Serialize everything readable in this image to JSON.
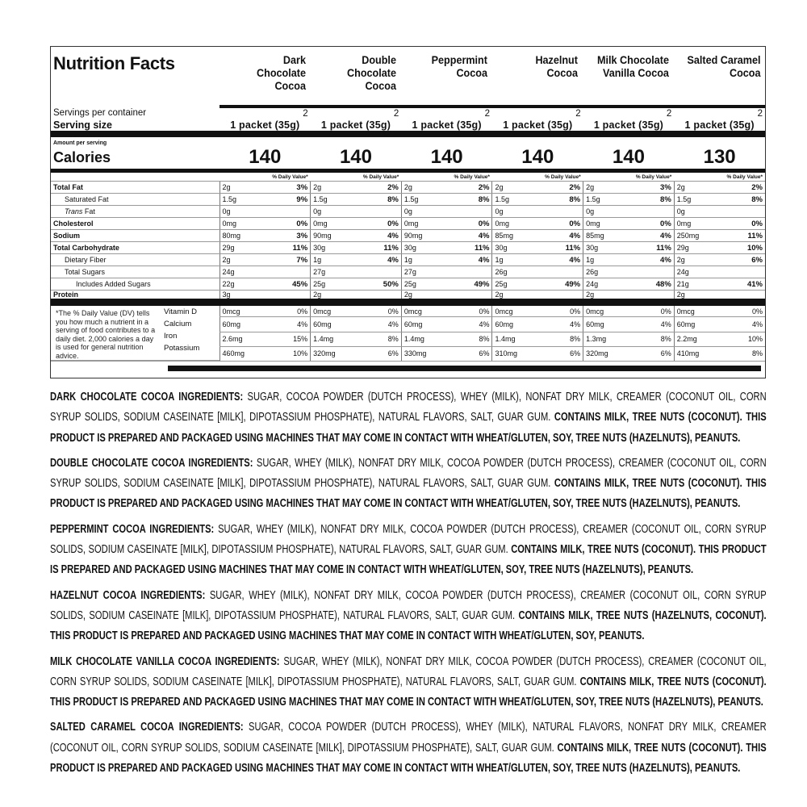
{
  "title": "Nutrition Facts",
  "labels": {
    "servings_per_container": "Servings per container",
    "serving_size": "Serving size",
    "amount_per_serving": "Amount per serving",
    "calories": "Calories",
    "dv_header": "% Daily Value*"
  },
  "products": [
    {
      "name": "Dark Chocolate Cocoa",
      "servings": "2",
      "serving_size": "1 packet (35g)",
      "calories": "140"
    },
    {
      "name": "Double Chocolate Cocoa",
      "servings": "2",
      "serving_size": "1 packet (35g)",
      "calories": "140"
    },
    {
      "name": "Peppermint Cocoa",
      "servings": "2",
      "serving_size": "1 packet (35g)",
      "calories": "140"
    },
    {
      "name": "Hazelnut Cocoa",
      "servings": "2",
      "serving_size": "1 packet (35g)",
      "calories": "140"
    },
    {
      "name": "Milk Chocolate Vanilla Cocoa",
      "servings": "2",
      "serving_size": "1 packet (35g)",
      "calories": "140"
    },
    {
      "name": "Salted Caramel Cocoa",
      "servings": "2",
      "serving_size": "1 packet (35g)",
      "calories": "130"
    }
  ],
  "nutrients": [
    {
      "label": "Total Fat",
      "bold": true,
      "indent": 0,
      "values": [
        [
          "2g",
          "3%"
        ],
        [
          "2g",
          "2%"
        ],
        [
          "2g",
          "2%"
        ],
        [
          "2g",
          "2%"
        ],
        [
          "2g",
          "3%"
        ],
        [
          "2g",
          "2%"
        ]
      ]
    },
    {
      "label": "Saturated Fat",
      "bold": false,
      "indent": 1,
      "values": [
        [
          "1.5g",
          "9%"
        ],
        [
          "1.5g",
          "8%"
        ],
        [
          "1.5g",
          "8%"
        ],
        [
          "1.5g",
          "8%"
        ],
        [
          "1.5g",
          "8%"
        ],
        [
          "1.5g",
          "8%"
        ]
      ]
    },
    {
      "label": "Trans Fat",
      "bold": false,
      "indent": 1,
      "italic_prefix": "Trans",
      "values": [
        [
          "0g",
          ""
        ],
        [
          "0g",
          ""
        ],
        [
          "0g",
          ""
        ],
        [
          "0g",
          ""
        ],
        [
          "0g",
          ""
        ],
        [
          "0g",
          ""
        ]
      ]
    },
    {
      "label": "Cholesterol",
      "bold": true,
      "indent": 0,
      "values": [
        [
          "0mg",
          "0%"
        ],
        [
          "0mg",
          "0%"
        ],
        [
          "0mg",
          "0%"
        ],
        [
          "0mg",
          "0%"
        ],
        [
          "0mg",
          "0%"
        ],
        [
          "0mg",
          "0%"
        ]
      ]
    },
    {
      "label": "Sodium",
      "bold": true,
      "indent": 0,
      "values": [
        [
          "80mg",
          "3%"
        ],
        [
          "90mg",
          "4%"
        ],
        [
          "90mg",
          "4%"
        ],
        [
          "85mg",
          "4%"
        ],
        [
          "85mg",
          "4%"
        ],
        [
          "250mg",
          "11%"
        ]
      ]
    },
    {
      "label": "Total Carbohydrate",
      "bold": true,
      "indent": 0,
      "values": [
        [
          "29g",
          "11%"
        ],
        [
          "30g",
          "11%"
        ],
        [
          "30g",
          "11%"
        ],
        [
          "30g",
          "11%"
        ],
        [
          "30g",
          "11%"
        ],
        [
          "29g",
          "10%"
        ]
      ]
    },
    {
      "label": "Dietary Fiber",
      "bold": false,
      "indent": 1,
      "values": [
        [
          "2g",
          "7%"
        ],
        [
          "1g",
          "4%"
        ],
        [
          "1g",
          "4%"
        ],
        [
          "1g",
          "4%"
        ],
        [
          "1g",
          "4%"
        ],
        [
          "2g",
          "6%"
        ]
      ]
    },
    {
      "label": "Total Sugars",
      "bold": false,
      "indent": 1,
      "values": [
        [
          "24g",
          ""
        ],
        [
          "27g",
          ""
        ],
        [
          "27g",
          ""
        ],
        [
          "26g",
          ""
        ],
        [
          "26g",
          ""
        ],
        [
          "24g",
          ""
        ]
      ]
    },
    {
      "label": "Includes Added Sugars",
      "bold": false,
      "indent": 2,
      "values": [
        [
          "22g",
          "45%"
        ],
        [
          "25g",
          "50%"
        ],
        [
          "25g",
          "49%"
        ],
        [
          "25g",
          "49%"
        ],
        [
          "24g",
          "48%"
        ],
        [
          "21g",
          "41%"
        ]
      ]
    },
    {
      "label": "Protein",
      "bold": true,
      "indent": 0,
      "values": [
        [
          "3g",
          ""
        ],
        [
          "2g",
          ""
        ],
        [
          "2g",
          ""
        ],
        [
          "2g",
          ""
        ],
        [
          "2g",
          ""
        ],
        [
          "2g",
          ""
        ]
      ]
    }
  ],
  "footnote": "*The % Daily Value (DV) tells you how much a nutrient in a serving of food contributes to a daily diet. 2,000 calories a day is used for general nutrition advice.",
  "vitamins": [
    {
      "label": "Vitamin D",
      "values": [
        [
          "0mcg",
          "0%"
        ],
        [
          "0mcg",
          "0%"
        ],
        [
          "0mcg",
          "0%"
        ],
        [
          "0mcg",
          "0%"
        ],
        [
          "0mcg",
          "0%"
        ],
        [
          "0mcg",
          "0%"
        ]
      ]
    },
    {
      "label": "Calcium",
      "values": [
        [
          "60mg",
          "4%"
        ],
        [
          "60mg",
          "4%"
        ],
        [
          "60mg",
          "4%"
        ],
        [
          "60mg",
          "4%"
        ],
        [
          "60mg",
          "4%"
        ],
        [
          "60mg",
          "4%"
        ]
      ]
    },
    {
      "label": "Iron",
      "values": [
        [
          "2.6mg",
          "15%"
        ],
        [
          "1.4mg",
          "8%"
        ],
        [
          "1.4mg",
          "8%"
        ],
        [
          "1.4mg",
          "8%"
        ],
        [
          "1.3mg",
          "8%"
        ],
        [
          "2.2mg",
          "10%"
        ]
      ]
    },
    {
      "label": "Potassium",
      "values": [
        [
          "460mg",
          "10%"
        ],
        [
          "320mg",
          "6%"
        ],
        [
          "330mg",
          "6%"
        ],
        [
          "310mg",
          "6%"
        ],
        [
          "320mg",
          "6%"
        ],
        [
          "410mg",
          "8%"
        ]
      ]
    }
  ],
  "ingredients": [
    {
      "heading": "Dark Chocolate Cocoa Ingredients:",
      "list": " Sugar, Cocoa Powder (Dutch Process), Whey (Milk), Nonfat Dry Milk, Creamer (Coconut Oil, Corn Syrup Solids, Sodium Caseinate [Milk], Dipotassium Phosphate), Natural Flavors, Salt, Guar Gum. ",
      "allergens": "Contains Milk, Tree Nuts (Coconut). This product is prepared and packaged using machines that may come in contact with Wheat/Gluten, Soy, Tree Nuts (Hazelnuts), Peanuts."
    },
    {
      "heading": "Double Chocolate Cocoa Ingredients:",
      "list": " Sugar, Whey (Milk), Nonfat Dry Milk, Cocoa Powder (Dutch Process), Creamer (Coconut Oil, Corn Syrup Solids, Sodium Caseinate [Milk], Dipotassium Phosphate), Natural Flavors, Salt, Guar Gum. ",
      "allergens": "Contains Milk, Tree Nuts (Coconut). This product is prepared and packaged using machines that may come in contact with Wheat/Gluten, Soy, Tree Nuts (Hazelnuts), Peanuts."
    },
    {
      "heading": "Peppermint Cocoa Ingredients:",
      "list": " Sugar, Whey (Milk), Nonfat Dry Milk, Cocoa Powder (Dutch Process), Creamer (Coconut Oil, Corn Syrup Solids, Sodium Caseinate [Milk], Dipotassium Phosphate), Natural Flavors, Salt, Guar Gum. ",
      "allergens": "Contains Milk, Tree Nuts (Coconut). This product is prepared and packaged using machines that may come in contact with Wheat/Gluten, Soy, Tree Nuts (Hazelnuts), Peanuts."
    },
    {
      "heading": "Hazelnut Cocoa Ingredients:",
      "list": " Sugar, Whey (Milk), Nonfat Dry Milk, Cocoa Powder (Dutch Process), Creamer (Coconut Oil, Corn Syrup Solids, Sodium Caseinate [Milk], Dipotassium Phosphate), Natural Flavors, Salt, Guar Gum. ",
      "allergens": "Contains Milk, Tree Nuts (Hazelnuts, Coconut). This product is prepared and packaged using machines that may come in contact with Wheat/Gluten, Soy, Peanuts."
    },
    {
      "heading": "Milk Chocolate Vanilla Cocoa Ingredients:",
      "list": " Sugar, Whey (Milk), Nonfat Dry Milk, Cocoa Powder (Dutch Process), Creamer (Coconut Oil, Corn Syrup Solids, Sodium Caseinate [Milk], Dipotassium Phosphate), Natural Flavors, Salt, Guar Gum. ",
      "allergens": "Contains Milk, Tree Nuts (Coconut). This product is prepared and packaged using machines that may come in contact with Wheat/Gluten, Soy, Tree Nuts (Hazelnuts), Peanuts."
    },
    {
      "heading": "Salted Caramel Cocoa Ingredients:",
      "list": " Sugar, Cocoa Powder (Dutch Process), Whey (Milk), Natural Flavors, Nonfat Dry Milk, Creamer (Coconut Oil, Corn Syrup Solids, Sodium Caseinate [Milk], Dipotassium Phosphate), Salt, Guar Gum. ",
      "allergens": "Contains Milk, Tree Nuts (Coconut). This product is prepared and packaged using machines that may come in contact with Wheat/Gluten, Soy,  Tree Nuts (Hazelnuts), Peanuts."
    }
  ]
}
